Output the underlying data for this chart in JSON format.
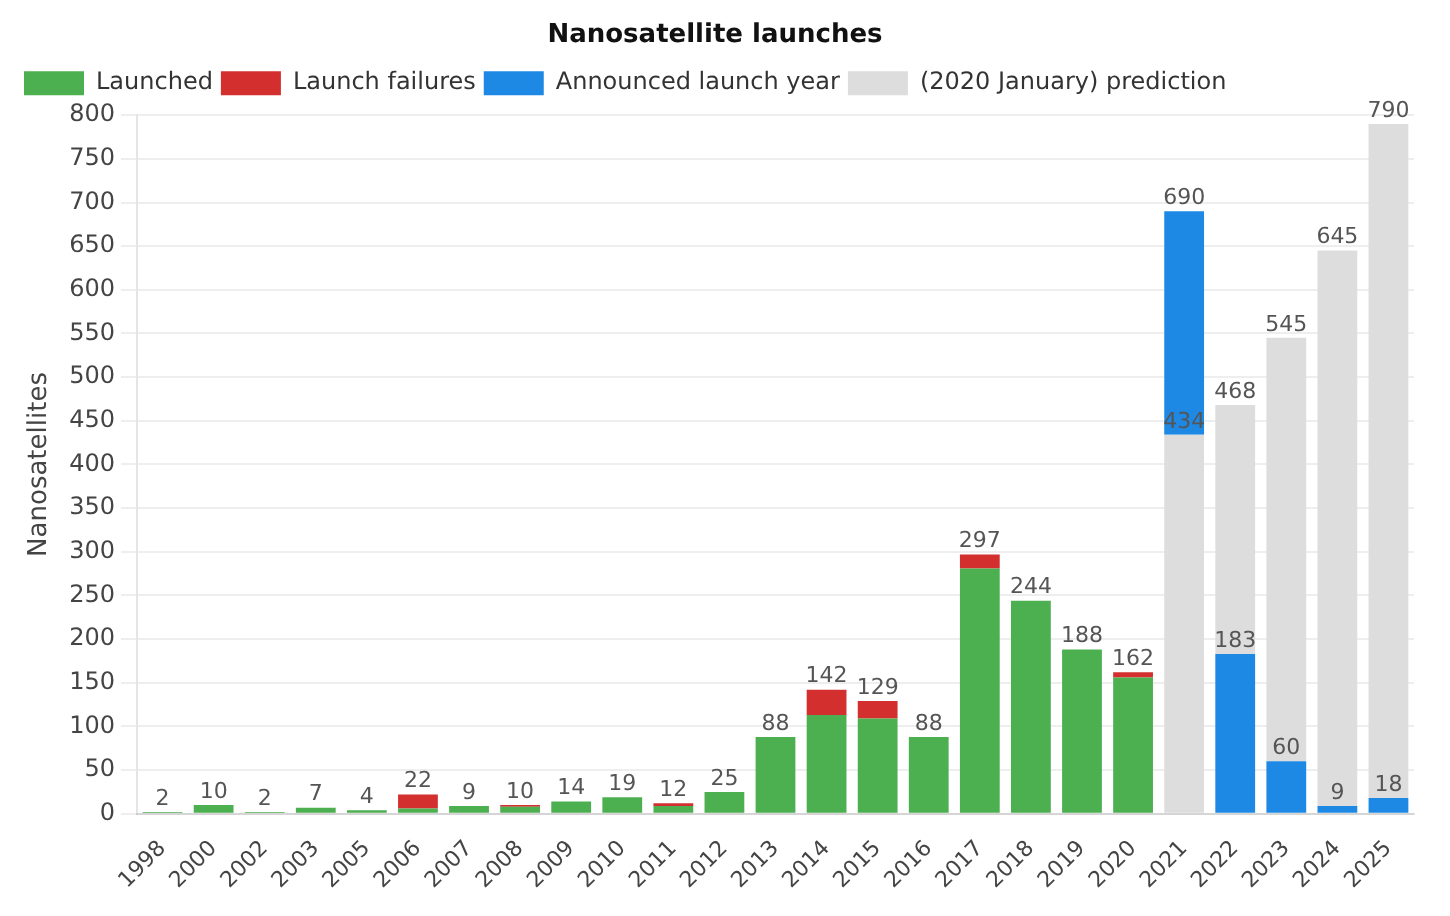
{
  "chart_data": {
    "type": "bar",
    "title": "Nanosatellite launches",
    "ylabel": "Nanosatellites",
    "stacked": true,
    "categories": [
      "1998",
      "2000",
      "2002",
      "2003",
      "2005",
      "2006",
      "2007",
      "2008",
      "2009",
      "2010",
      "2011",
      "2012",
      "2013",
      "2014",
      "2015",
      "2016",
      "2017",
      "2018",
      "2019",
      "2020",
      "2021",
      "2022",
      "2023",
      "2024",
      "2025"
    ],
    "series": [
      {
        "name": "Launched",
        "color": "#4caf50",
        "values": [
          2,
          10,
          2,
          7,
          4,
          6,
          9,
          8,
          14,
          19,
          9,
          25,
          88,
          113,
          109,
          88,
          281,
          244,
          188,
          156,
          null,
          null,
          null,
          null,
          null
        ]
      },
      {
        "name": "Launch failures",
        "color": "#d32f2f",
        "values": [
          null,
          null,
          null,
          null,
          null,
          16,
          null,
          2,
          null,
          null,
          3,
          null,
          null,
          29,
          20,
          null,
          16,
          null,
          null,
          6,
          null,
          null,
          null,
          null,
          null
        ]
      },
      {
        "color": "#dddddd",
        "values": [
          null,
          null,
          null,
          null,
          null,
          null,
          null,
          null,
          null,
          null,
          null,
          null,
          null,
          null,
          null,
          null,
          null,
          null,
          null,
          null,
          434,
          null,
          null,
          null,
          null
        ],
        "value_labels": [
          null,
          null,
          null,
          null,
          null,
          null,
          null,
          null,
          null,
          null,
          null,
          null,
          null,
          null,
          null,
          null,
          null,
          null,
          null,
          null,
          "434",
          null,
          null,
          null,
          null
        ]
      },
      {
        "name": "Announced launch year",
        "color": "#1e88e5",
        "values": [
          null,
          null,
          null,
          null,
          null,
          null,
          null,
          null,
          null,
          null,
          null,
          null,
          null,
          null,
          null,
          null,
          null,
          null,
          null,
          null,
          256,
          183,
          60,
          9,
          18
        ],
        "value_labels": [
          null,
          null,
          null,
          null,
          null,
          null,
          null,
          null,
          null,
          null,
          null,
          null,
          null,
          null,
          null,
          null,
          null,
          null,
          null,
          null,
          null,
          "183",
          "60",
          "9",
          "18"
        ]
      },
      {
        "name": "(2020 January) prediction",
        "color": "#dddddd",
        "values": [
          null,
          null,
          null,
          null,
          null,
          null,
          null,
          null,
          null,
          null,
          null,
          null,
          null,
          null,
          null,
          null,
          null,
          null,
          null,
          null,
          null,
          285,
          485,
          636,
          772
        ]
      }
    ],
    "totals": [
      "2",
      "10",
      "2",
      "7",
      "4",
      "22",
      "9",
      "10",
      "14",
      "19",
      "12",
      "25",
      "88",
      "142",
      "129",
      "88",
      "297",
      "244",
      "188",
      "162",
      "690",
      "468",
      "545",
      "645",
      "790"
    ],
    "ylim": [
      0,
      800
    ],
    "yticks": [
      0,
      50,
      100,
      150,
      200,
      250,
      300,
      350,
      400,
      450,
      500,
      550,
      600,
      650,
      700,
      750,
      800
    ],
    "grid": "y",
    "legend": "top left"
  }
}
